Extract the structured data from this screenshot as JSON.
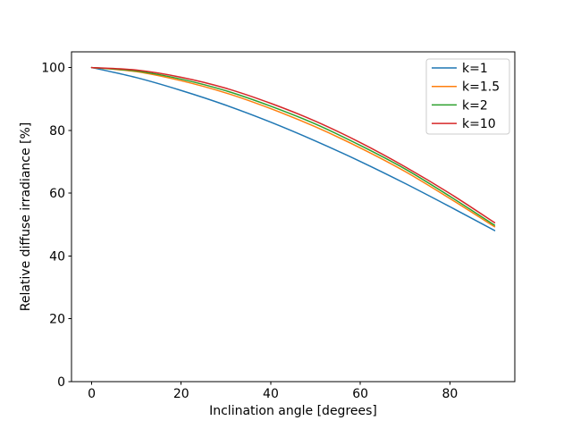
{
  "chart_data": {
    "type": "line",
    "title": "",
    "xlabel": "Inclination angle [degrees]",
    "ylabel": "Relative diffuse irradiance [%]",
    "xlim": [
      -4.5,
      94.5
    ],
    "ylim": [
      0,
      105
    ],
    "xticks": [
      0,
      20,
      40,
      60,
      80
    ],
    "yticks": [
      0,
      20,
      40,
      60,
      80,
      100
    ],
    "grid": false,
    "background_color": "#ffffff",
    "spine_color": "#000000",
    "legend": {
      "position": "upper-right",
      "frame_color": "#cccccc",
      "entries": [
        {
          "label": "k=1",
          "color": "#1f77b4"
        },
        {
          "label": "k=1.5",
          "color": "#ff7f0e"
        },
        {
          "label": "k=2",
          "color": "#2ca02c"
        },
        {
          "label": "k=10",
          "color": "#d62728"
        }
      ]
    },
    "x": [
      0,
      10,
      20,
      30,
      40,
      50,
      60,
      70,
      80,
      90
    ],
    "series": [
      {
        "name": "k=1",
        "color": "#1f77b4",
        "values": [
          100,
          96.8,
          92.7,
          88.0,
          82.6,
          76.6,
          70.1,
          63.1,
          55.7,
          48.1
        ]
      },
      {
        "name": "k=1.5",
        "color": "#ff7f0e",
        "values": [
          100,
          98.7,
          95.8,
          91.9,
          86.9,
          81.1,
          74.4,
          66.9,
          58.3,
          49.3
        ]
      },
      {
        "name": "k=2",
        "color": "#2ca02c",
        "values": [
          100,
          98.9,
          96.3,
          92.6,
          87.7,
          82.0,
          75.2,
          67.7,
          59.0,
          49.8
        ]
      },
      {
        "name": "k=10",
        "color": "#d62728",
        "values": [
          100,
          99.2,
          96.9,
          93.4,
          88.6,
          82.9,
          76.1,
          68.4,
          59.9,
          50.6
        ]
      }
    ]
  }
}
